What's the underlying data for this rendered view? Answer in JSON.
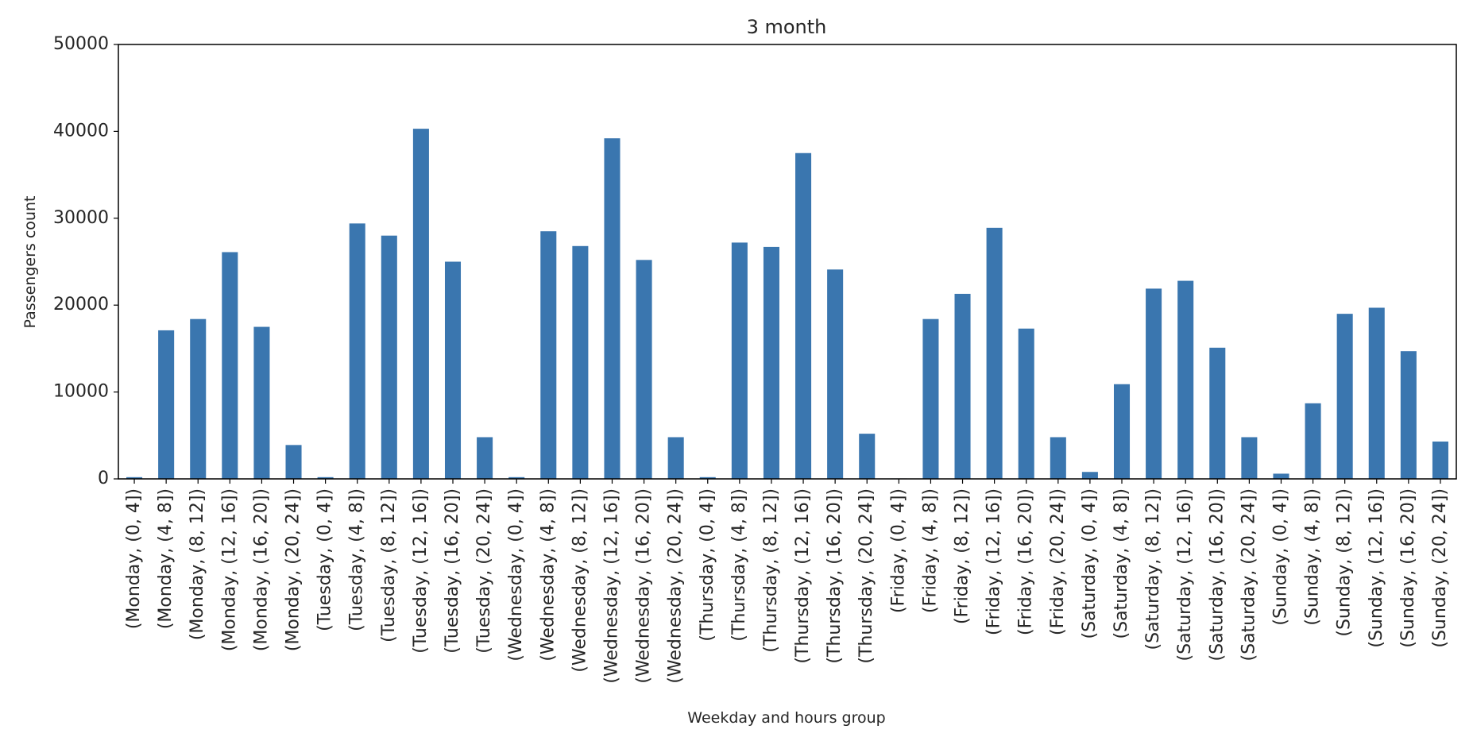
{
  "chart_data": {
    "type": "bar",
    "title": "3 month",
    "xlabel": "Weekday and hours group",
    "ylabel": "Passengers count",
    "ylim": [
      0,
      50000
    ],
    "yticks": [
      "0",
      "10000",
      "20000",
      "30000",
      "40000",
      "50000"
    ],
    "grid": false,
    "bar_color": "#3a76af",
    "categories": [
      "(Monday, (0, 4])",
      "(Monday, (4, 8])",
      "(Monday, (8, 12])",
      "(Monday, (12, 16])",
      "(Monday, (16, 20])",
      "(Monday, (20, 24])",
      "(Tuesday, (0, 4])",
      "(Tuesday, (4, 8])",
      "(Tuesday, (8, 12])",
      "(Tuesday, (12, 16])",
      "(Tuesday, (16, 20])",
      "(Tuesday, (20, 24])",
      "(Wednesday, (0, 4])",
      "(Wednesday, (4, 8])",
      "(Wednesday, (8, 12])",
      "(Wednesday, (12, 16])",
      "(Wednesday, (16, 20])",
      "(Wednesday, (20, 24])",
      "(Thursday, (0, 4])",
      "(Thursday, (4, 8])",
      "(Thursday, (8, 12])",
      "(Thursday, (12, 16])",
      "(Thursday, (16, 20])",
      "(Thursday, (20, 24])",
      "(Friday, (0, 4])",
      "(Friday, (4, 8])",
      "(Friday, (8, 12])",
      "(Friday, (12, 16])",
      "(Friday, (16, 20])",
      "(Friday, (20, 24])",
      "(Saturday, (0, 4])",
      "(Saturday, (4, 8])",
      "(Saturday, (8, 12])",
      "(Saturday, (12, 16])",
      "(Saturday, (16, 20])",
      "(Saturday, (20, 24])",
      "(Sunday, (0, 4])",
      "(Sunday, (4, 8])",
      "(Sunday, (8, 12])",
      "(Sunday, (12, 16])",
      "(Sunday, (16, 20])",
      "(Sunday, (20, 24])"
    ],
    "values": [
      200,
      17100,
      18400,
      26100,
      17500,
      3900,
      200,
      29400,
      28000,
      40300,
      25000,
      4800,
      200,
      28500,
      26800,
      39200,
      25200,
      4800,
      200,
      27200,
      26700,
      37500,
      24100,
      5200,
      50,
      18400,
      21300,
      28900,
      17300,
      4800,
      800,
      10900,
      21900,
      22800,
      15100,
      4800,
      600,
      8700,
      19000,
      19700,
      14700,
      4300
    ]
  }
}
